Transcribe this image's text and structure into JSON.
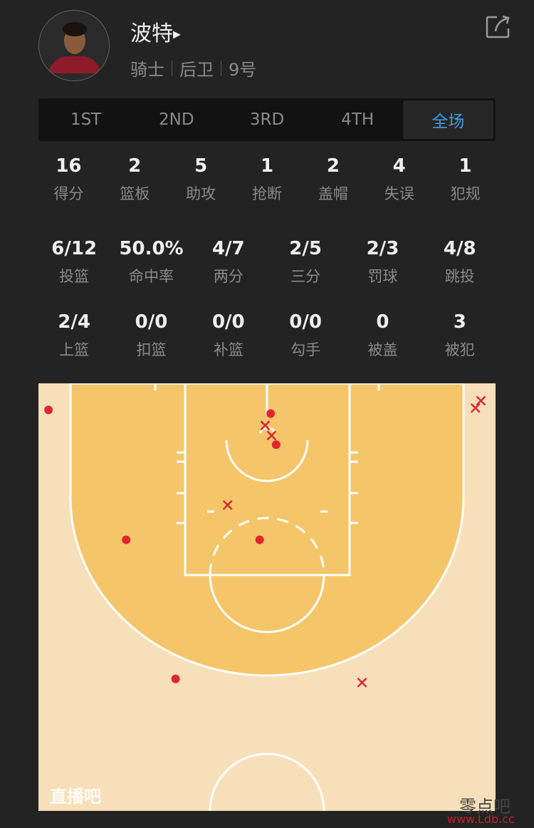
{
  "player": {
    "name": "波特",
    "team": "骑士",
    "position": "后卫",
    "number": "9号"
  },
  "tabs": [
    {
      "label": "1ST"
    },
    {
      "label": "2ND"
    },
    {
      "label": "3RD"
    },
    {
      "label": "4TH"
    },
    {
      "label": "全场",
      "active": true
    }
  ],
  "accent": "#3d9be9",
  "stats_row1": [
    {
      "v": "16",
      "l": "得分"
    },
    {
      "v": "2",
      "l": "篮板"
    },
    {
      "v": "5",
      "l": "助攻"
    },
    {
      "v": "1",
      "l": "抢断"
    },
    {
      "v": "2",
      "l": "盖帽"
    },
    {
      "v": "4",
      "l": "失误"
    },
    {
      "v": "1",
      "l": "犯规"
    }
  ],
  "stats_row2": [
    {
      "v": "6/12",
      "l": "投篮"
    },
    {
      "v": "50.0%",
      "l": "命中率"
    },
    {
      "v": "4/7",
      "l": "两分"
    },
    {
      "v": "2/5",
      "l": "三分"
    },
    {
      "v": "2/3",
      "l": "罚球"
    },
    {
      "v": "4/8",
      "l": "跳投"
    }
  ],
  "stats_row3": [
    {
      "v": "2/4",
      "l": "上篮"
    },
    {
      "v": "0/0",
      "l": "扣篮"
    },
    {
      "v": "0/0",
      "l": "补篮"
    },
    {
      "v": "0/0",
      "l": "勾手"
    },
    {
      "v": "0",
      "l": "被盖"
    },
    {
      "v": "3",
      "l": "被犯"
    }
  ],
  "shot_chart": {
    "units": "feet from left sideline / baseline",
    "made_color": "#e0262f",
    "missed_color": "#d8283a",
    "made": [
      [
        1.1,
        2.9
      ],
      [
        25.4,
        3.3
      ],
      [
        26.0,
        6.7
      ],
      [
        9.6,
        17.1
      ],
      [
        24.2,
        17.1
      ],
      [
        15.0,
        32.3
      ]
    ],
    "missed": [
      [
        24.8,
        4.6
      ],
      [
        25.5,
        5.7
      ],
      [
        20.7,
        13.3
      ],
      [
        48.4,
        1.9
      ],
      [
        47.8,
        2.7
      ],
      [
        35.4,
        32.7
      ]
    ]
  },
  "branding": {
    "logo": "直播吧",
    "watermark_cn": "零点吧",
    "watermark_url": "www.Ldb.cc"
  }
}
